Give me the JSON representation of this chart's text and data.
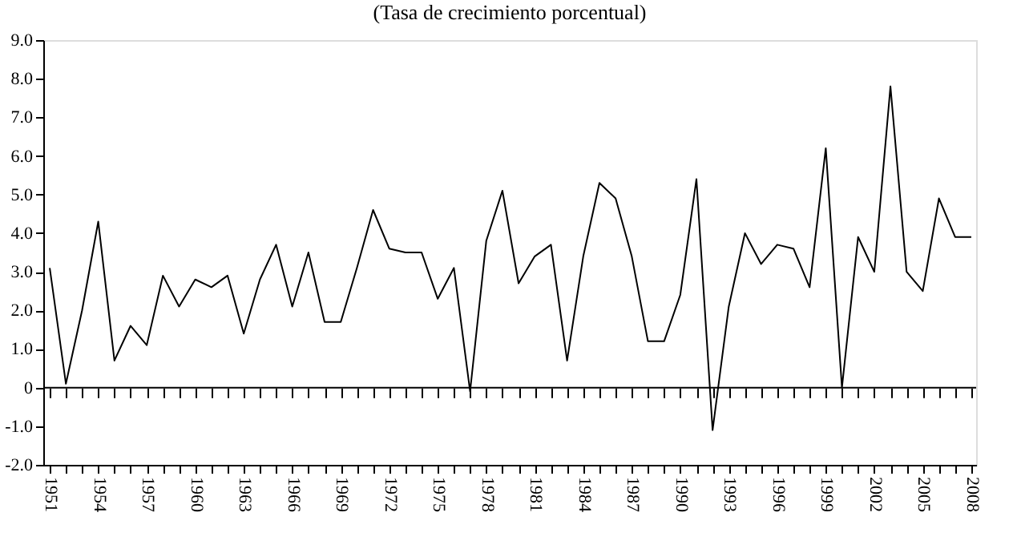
{
  "chart_data": {
    "type": "line",
    "title": "(Tasa de crecimiento porcentual)",
    "x": [
      1951,
      1952,
      1953,
      1954,
      1955,
      1956,
      1957,
      1958,
      1959,
      1960,
      1961,
      1962,
      1963,
      1964,
      1965,
      1966,
      1967,
      1968,
      1969,
      1970,
      1971,
      1972,
      1973,
      1974,
      1975,
      1976,
      1977,
      1978,
      1979,
      1980,
      1981,
      1982,
      1983,
      1984,
      1985,
      1986,
      1987,
      1988,
      1989,
      1990,
      1991,
      1992,
      1993,
      1994,
      1995,
      1996,
      1997,
      1998,
      1999,
      2000,
      2001,
      2002,
      2003,
      2004,
      2005,
      2006,
      2007,
      2008
    ],
    "series": [
      {
        "color": "#000000",
        "values": [
          3.1,
          0.1,
          2.0,
          4.3,
          0.7,
          1.6,
          1.1,
          2.9,
          2.1,
          2.8,
          2.6,
          2.9,
          1.4,
          2.8,
          3.7,
          2.1,
          3.5,
          1.7,
          1.7,
          3.1,
          4.6,
          3.6,
          3.5,
          3.5,
          2.3,
          3.1,
          -0.1,
          3.8,
          5.1,
          2.7,
          3.4,
          3.7,
          0.7,
          3.4,
          5.3,
          4.9,
          3.4,
          1.2,
          1.2,
          2.4,
          5.4,
          -1.1,
          2.1,
          4.0,
          3.2,
          3.7,
          3.6,
          2.6,
          6.2,
          0.0,
          3.9,
          3.0,
          7.8,
          3.0,
          2.5,
          4.9,
          3.9,
          3.9
        ]
      }
    ],
    "xlim": [
      1950.6,
      2008.3
    ],
    "xticks": [
      1951,
      {
        "value": 1952,
        "label": null
      },
      {
        "value": 1953,
        "label": null
      },
      1954,
      {
        "value": 1955,
        "label": null
      },
      {
        "value": 1956,
        "label": null
      },
      1957,
      {
        "value": 1958,
        "label": null
      },
      {
        "value": 1959,
        "label": null
      },
      1960,
      {
        "value": 1961,
        "label": null
      },
      {
        "value": 1962,
        "label": null
      },
      1963,
      {
        "value": 1964,
        "label": null
      },
      {
        "value": 1965,
        "label": null
      },
      1966,
      {
        "value": 1967,
        "label": null
      },
      {
        "value": 1968,
        "label": null
      },
      1969,
      {
        "value": 1970,
        "label": null
      },
      {
        "value": 1971,
        "label": null
      },
      1972,
      {
        "value": 1973,
        "label": null
      },
      {
        "value": 1974,
        "label": null
      },
      1975,
      {
        "value": 1976,
        "label": null
      },
      {
        "value": 1977,
        "label": null
      },
      1978,
      {
        "value": 1979,
        "label": null
      },
      {
        "value": 1980,
        "label": null
      },
      1981,
      {
        "value": 1982,
        "label": null
      },
      {
        "value": 1983,
        "label": null
      },
      1984,
      {
        "value": 1985,
        "label": null
      },
      {
        "value": 1986,
        "label": null
      },
      1987,
      {
        "value": 1988,
        "label": null
      },
      {
        "value": 1989,
        "label": null
      },
      1990,
      {
        "value": 1991,
        "label": null
      },
      {
        "value": 1992,
        "label": null
      },
      1993,
      {
        "value": 1994,
        "label": null
      },
      {
        "value": 1995,
        "label": null
      },
      1996,
      {
        "value": 1997,
        "label": null
      },
      {
        "value": 1998,
        "label": null
      },
      1999,
      {
        "value": 2000,
        "label": null
      },
      {
        "value": 2001,
        "label": null
      },
      2002,
      {
        "value": 2003,
        "label": null
      },
      {
        "value": 2004,
        "label": null
      },
      2005,
      {
        "value": 2006,
        "label": null
      },
      {
        "value": 2007,
        "label": null
      },
      2008
    ],
    "ylim": [
      -2,
      9
    ],
    "yticks": [
      {
        "value": -2,
        "label": "-2.0"
      },
      {
        "value": -1,
        "label": "-1.0"
      },
      0,
      {
        "value": 1,
        "label": "1.0"
      },
      {
        "value": 2,
        "label": "2.0"
      },
      {
        "value": 3,
        "label": "3.0"
      },
      {
        "value": 4,
        "label": "4.0"
      },
      {
        "value": 5,
        "label": "5.0"
      },
      {
        "value": 6,
        "label": "6.0"
      },
      {
        "value": 7,
        "label": "7.0"
      },
      {
        "value": 8,
        "label": "8.0"
      },
      {
        "value": 9,
        "label": "9.0"
      }
    ],
    "ref_lines": [
      {
        "axis": "y",
        "value": 0,
        "label": null,
        "color": "#000000"
      }
    ],
    "grid": false,
    "legend": false,
    "marker": "none",
    "line_style": "solid"
  }
}
